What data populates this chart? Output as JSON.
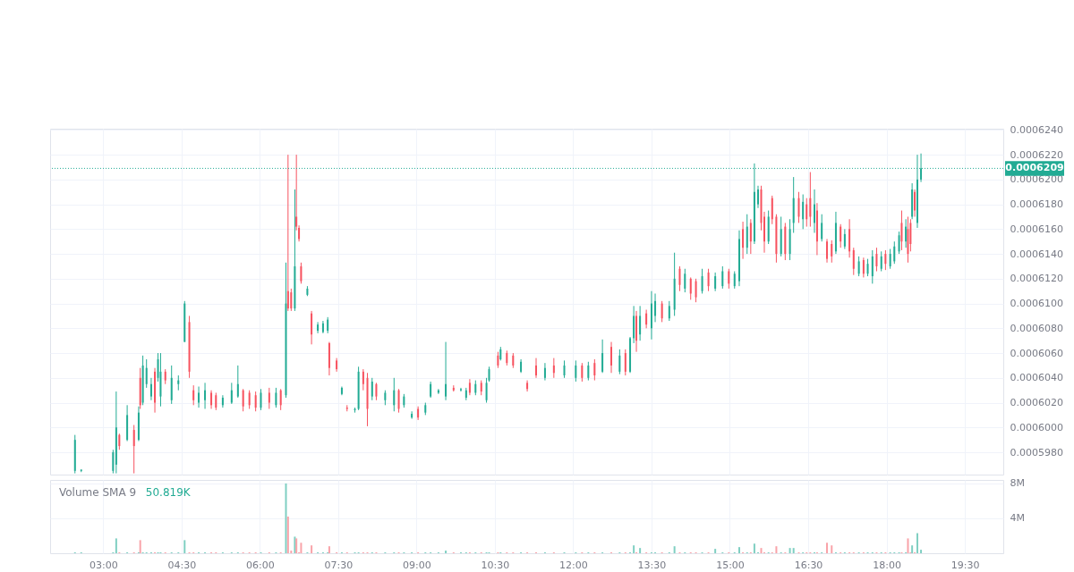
{
  "chart_data": [
    {
      "type": "candlestick",
      "x": [
        2.46,
        2.58,
        3.19,
        3.25,
        3.31,
        3.46,
        3.59,
        3.68,
        3.71,
        3.76,
        3.83,
        3.92,
        3.99,
        4.05,
        4.1,
        4.19,
        4.31,
        4.44,
        4.56,
        4.65,
        4.73,
        4.83,
        4.95,
        5.07,
        5.16,
        5.29,
        5.46,
        5.58,
        5.68,
        5.8,
        5.92,
        6.02,
        6.18,
        6.31,
        6.4,
        6.5,
        6.54,
        6.6,
        6.67,
        6.7,
        6.75,
        6.79,
        6.91,
        6.99,
        7.11,
        7.21,
        7.3,
        7.33,
        7.47,
        7.57,
        7.67,
        7.82,
        7.89,
        7.98,
        8.06,
        8.15,
        8.23,
        8.4,
        8.57,
        8.66,
        8.76,
        8.91,
        9.03,
        9.17,
        9.27,
        9.42,
        9.56,
        9.71,
        9.85,
        9.95,
        10.02,
        10.13,
        10.24,
        10.34,
        10.39,
        10.56,
        10.61,
        10.73,
        10.85,
        11.0,
        11.12,
        11.29,
        11.46,
        11.63,
        11.83,
        12.05,
        12.17,
        12.29,
        12.41,
        12.56,
        12.73,
        12.89,
        13.0,
        13.09,
        13.16,
        13.21,
        13.28,
        13.4,
        13.5,
        13.57,
        13.7,
        13.84,
        13.94,
        14.04,
        14.14,
        14.25,
        14.35,
        14.47,
        14.59,
        14.72,
        14.86,
        14.98,
        15.09,
        15.18,
        15.25,
        15.33,
        15.4,
        15.47,
        15.54,
        15.6,
        15.66,
        15.74,
        15.81,
        15.89,
        15.98,
        16.06,
        16.15,
        16.22,
        16.32,
        16.4,
        16.47,
        16.54,
        16.62,
        16.67,
        16.76,
        16.86,
        16.95,
        17.03,
        17.12,
        17.2,
        17.29,
        17.37,
        17.47,
        17.56,
        17.64,
        17.73,
        17.81,
        17.9,
        17.98,
        18.07,
        18.15,
        18.24,
        18.29,
        18.37,
        18.41,
        18.46,
        18.49,
        18.54,
        18.59,
        18.66
      ],
      "ohlc": [
        [
          0.0005965,
          0.0005994,
          0.0005963,
          0.000599
        ],
        [
          0.0005965,
          0.0005966,
          0.0005964,
          0.0005966
        ],
        [
          0.0005965,
          0.0005982,
          0.0005963,
          0.000598
        ],
        [
          0.000597,
          0.0006029,
          0.0005963,
          0.0006
        ],
        [
          0.0005994,
          0.0005995,
          0.0005982,
          0.0005985
        ],
        [
          0.000599,
          0.0006018,
          0.0005989,
          0.000601
        ],
        [
          0.0005998,
          0.0006002,
          0.0005963,
          0.0005985
        ],
        [
          0.000599,
          0.0006017,
          0.0005989,
          0.0006012
        ],
        [
          0.000604,
          0.0006048,
          0.0006015,
          0.0006018
        ],
        [
          0.000602,
          0.0006058,
          0.0006018,
          0.000605
        ],
        [
          0.0006035,
          0.0006055,
          0.0006032,
          0.0006048
        ],
        [
          0.0006025,
          0.000604,
          0.0006022,
          0.0006035
        ],
        [
          0.0006045,
          0.0006048,
          0.0006012,
          0.000602
        ],
        [
          0.000604,
          0.000606,
          0.0006037,
          0.0006055
        ],
        [
          0.0006025,
          0.000606,
          0.0006017,
          0.0006045
        ],
        [
          0.0006045,
          0.0006047,
          0.0006035,
          0.0006038
        ],
        [
          0.0006022,
          0.000605,
          0.0006019,
          0.000604
        ],
        [
          0.0006035,
          0.0006042,
          0.000603,
          0.0006038
        ],
        [
          0.0006069,
          0.0006102,
          0.0006069,
          0.00061
        ],
        [
          0.0006085,
          0.000609,
          0.000604,
          0.0006045
        ],
        [
          0.000603,
          0.0006034,
          0.0006018,
          0.0006022
        ],
        [
          0.000602,
          0.0006033,
          0.0006016,
          0.0006028
        ],
        [
          0.0006022,
          0.0006036,
          0.0006015,
          0.000603
        ],
        [
          0.0006028,
          0.000603,
          0.0006015,
          0.0006018
        ],
        [
          0.0006026,
          0.0006028,
          0.0006014,
          0.0006016
        ],
        [
          0.0006018,
          0.0006026,
          0.0006016,
          0.0006024
        ],
        [
          0.000602,
          0.0006036,
          0.0006019,
          0.000603
        ],
        [
          0.0006025,
          0.000605,
          0.0006024,
          0.0006035
        ],
        [
          0.000603,
          0.0006031,
          0.0006013,
          0.0006017
        ],
        [
          0.0006028,
          0.000603,
          0.0006015,
          0.0006018
        ],
        [
          0.0006026,
          0.0006029,
          0.0006013,
          0.0006016
        ],
        [
          0.0006016,
          0.0006031,
          0.0006014,
          0.0006028
        ],
        [
          0.0006028,
          0.0006032,
          0.0006015,
          0.000602
        ],
        [
          0.0006018,
          0.0006032,
          0.0006016,
          0.0006028
        ],
        [
          0.000603,
          0.0006031,
          0.0006014,
          0.0006018
        ],
        [
          0.0006026,
          0.0006133,
          0.0006024,
          0.00061
        ],
        [
          0.000611,
          0.000622,
          0.0006094,
          0.0006096
        ],
        [
          0.0006109,
          0.0006112,
          0.0006094,
          0.0006096
        ],
        [
          0.0006096,
          0.0006192,
          0.0006094,
          0.000613
        ],
        [
          0.000617,
          0.000622,
          0.0006159,
          0.0006162
        ],
        [
          0.0006161,
          0.0006163,
          0.000615,
          0.0006152
        ],
        [
          0.000613,
          0.0006133,
          0.0006116,
          0.0006118
        ],
        [
          0.0006107,
          0.0006114,
          0.0006106,
          0.0006112
        ],
        [
          0.0006092,
          0.0006094,
          0.0006067,
          0.0006075
        ],
        [
          0.0006078,
          0.0006085,
          0.0006076,
          0.0006083
        ],
        [
          0.0006077,
          0.0006086,
          0.0006076,
          0.0006084
        ],
        [
          0.0006078,
          0.0006089,
          0.0006076,
          0.0006087
        ],
        [
          0.0006068,
          0.0006069,
          0.0006042,
          0.0006048
        ],
        [
          0.0006054,
          0.0006056,
          0.0006045,
          0.0006047
        ],
        [
          0.0006027,
          0.0006033,
          0.0006026,
          0.0006032
        ],
        [
          0.0006016,
          0.0006018,
          0.0006013,
          0.0006015
        ],
        [
          0.0006014,
          0.0006016,
          0.0006012,
          0.0006015
        ],
        [
          0.0006015,
          0.0006049,
          0.0006014,
          0.0006045
        ],
        [
          0.0006045,
          0.0006047,
          0.000603,
          0.0006035
        ],
        [
          0.000604,
          0.0006044,
          0.0006001,
          0.0006015
        ],
        [
          0.0006025,
          0.000604,
          0.0006022,
          0.0006037
        ],
        [
          0.0006035,
          0.0006036,
          0.0006022,
          0.0006025
        ],
        [
          0.0006022,
          0.000603,
          0.0006018,
          0.0006028
        ],
        [
          0.0006018,
          0.000604,
          0.0006013,
          0.000603
        ],
        [
          0.000603,
          0.0006031,
          0.0006012,
          0.0006015
        ],
        [
          0.0006018,
          0.0006027,
          0.0006016,
          0.0006025
        ],
        [
          0.0006008,
          0.0006013,
          0.0006007,
          0.0006011
        ],
        [
          0.0006015,
          0.0006017,
          0.0006006,
          0.0006008
        ],
        [
          0.0006012,
          0.000602,
          0.000601,
          0.0006018
        ],
        [
          0.0006025,
          0.0006037,
          0.0006024,
          0.0006035
        ],
        [
          0.0006028,
          0.0006031,
          0.0006027,
          0.000603
        ],
        [
          0.0006025,
          0.0006069,
          0.0006022,
          0.0006035
        ],
        [
          0.0006032,
          0.0006034,
          0.0006029,
          0.000603
        ],
        [
          0.000603,
          0.0006032,
          0.0006029,
          0.0006031
        ],
        [
          0.0006024,
          0.0006032,
          0.0006022,
          0.000603
        ],
        [
          0.0006036,
          0.0006039,
          0.0006026,
          0.0006028
        ],
        [
          0.0006028,
          0.0006038,
          0.0006026,
          0.0006035
        ],
        [
          0.0006036,
          0.0006038,
          0.0006026,
          0.0006029
        ],
        [
          0.0006022,
          0.000604,
          0.000602,
          0.0006036
        ],
        [
          0.0006038,
          0.0006049,
          0.0006037,
          0.0006047
        ],
        [
          0.0006058,
          0.0006061,
          0.0006048,
          0.000605
        ],
        [
          0.0006055,
          0.0006065,
          0.0006054,
          0.0006063
        ],
        [
          0.000606,
          0.0006062,
          0.000605,
          0.0006052
        ],
        [
          0.0006058,
          0.000606,
          0.0006048,
          0.000605
        ],
        [
          0.0006045,
          0.0006055,
          0.0006044,
          0.0006053
        ],
        [
          0.0006036,
          0.0006038,
          0.0006029,
          0.0006031
        ],
        [
          0.000605,
          0.0006056,
          0.000604,
          0.0006042
        ],
        [
          0.000604,
          0.0006052,
          0.0006038,
          0.0006048
        ],
        [
          0.000605,
          0.0006056,
          0.000604,
          0.0006044
        ],
        [
          0.0006042,
          0.0006054,
          0.000604,
          0.000605
        ],
        [
          0.000604,
          0.0006054,
          0.0006037,
          0.000605
        ],
        [
          0.000605,
          0.0006052,
          0.0006037,
          0.000604
        ],
        [
          0.000604,
          0.0006053,
          0.0006038,
          0.000605
        ],
        [
          0.0006052,
          0.0006055,
          0.0006038,
          0.0006042
        ],
        [
          0.0006045,
          0.0006071,
          0.0006044,
          0.000606
        ],
        [
          0.0006065,
          0.0006069,
          0.0006044,
          0.000605
        ],
        [
          0.0006045,
          0.0006063,
          0.0006043,
          0.0006058
        ],
        [
          0.000606,
          0.0006063,
          0.0006042,
          0.0006045
        ],
        [
          0.0006045,
          0.0006073,
          0.0006044,
          0.0006072
        ],
        [
          0.0006072,
          0.0006098,
          0.0006068,
          0.000609
        ],
        [
          0.000609,
          0.0006094,
          0.0006061,
          0.000607
        ],
        [
          0.0006075,
          0.0006098,
          0.000607,
          0.000609
        ],
        [
          0.0006092,
          0.0006095,
          0.000608,
          0.0006083
        ],
        [
          0.000608,
          0.000611,
          0.0006071,
          0.00061
        ],
        [
          0.000609,
          0.0006108,
          0.0006085,
          0.0006102
        ],
        [
          0.00061,
          0.0006102,
          0.0006085,
          0.0006088
        ],
        [
          0.0006088,
          0.0006102,
          0.0006086,
          0.0006098
        ],
        [
          0.0006095,
          0.0006141,
          0.000609,
          0.000612
        ],
        [
          0.0006128,
          0.000613,
          0.000611,
          0.0006115
        ],
        [
          0.0006112,
          0.0006128,
          0.0006109,
          0.0006124
        ],
        [
          0.000612,
          0.0006121,
          0.0006103,
          0.0006108
        ],
        [
          0.0006118,
          0.000612,
          0.0006101,
          0.0006105
        ],
        [
          0.000611,
          0.0006128,
          0.0006108,
          0.0006122
        ],
        [
          0.0006125,
          0.0006128,
          0.000611,
          0.0006114
        ],
        [
          0.0006112,
          0.0006125,
          0.000611,
          0.0006122
        ],
        [
          0.0006114,
          0.000613,
          0.0006112,
          0.0006126
        ],
        [
          0.0006126,
          0.0006128,
          0.0006112,
          0.0006116
        ],
        [
          0.0006114,
          0.0006126,
          0.0006112,
          0.0006124
        ],
        [
          0.0006118,
          0.0006159,
          0.0006114,
          0.0006152
        ],
        [
          0.000616,
          0.0006166,
          0.0006136,
          0.0006145
        ],
        [
          0.0006145,
          0.0006172,
          0.000614,
          0.0006162
        ],
        [
          0.0006165,
          0.0006168,
          0.000614,
          0.000615
        ],
        [
          0.000615,
          0.0006213,
          0.0006148,
          0.000619
        ],
        [
          0.000618,
          0.0006195,
          0.0006177,
          0.0006192
        ],
        [
          0.0006192,
          0.0006195,
          0.0006159,
          0.0006165
        ],
        [
          0.000617,
          0.0006174,
          0.0006141,
          0.000615
        ],
        [
          0.000615,
          0.0006175,
          0.0006148,
          0.000617
        ],
        [
          0.0006185,
          0.0006187,
          0.0006164,
          0.0006168
        ],
        [
          0.000617,
          0.0006172,
          0.0006133,
          0.000614
        ],
        [
          0.000614,
          0.000617,
          0.0006138,
          0.000616
        ],
        [
          0.0006162,
          0.0006165,
          0.0006135,
          0.000614
        ],
        [
          0.000614,
          0.0006168,
          0.0006135,
          0.000616
        ],
        [
          0.0006165,
          0.0006202,
          0.0006157,
          0.0006185
        ],
        [
          0.0006185,
          0.000619,
          0.0006165,
          0.000617
        ],
        [
          0.0006168,
          0.0006188,
          0.000616,
          0.0006182
        ],
        [
          0.000618,
          0.0006185,
          0.0006162,
          0.0006168
        ],
        [
          0.0006185,
          0.0006206,
          0.0006162,
          0.000617
        ],
        [
          0.0006165,
          0.0006192,
          0.0006157,
          0.000618
        ],
        [
          0.0006175,
          0.0006181,
          0.0006139,
          0.000615
        ],
        [
          0.0006152,
          0.0006172,
          0.000615,
          0.0006165
        ],
        [
          0.000615,
          0.0006152,
          0.0006133,
          0.0006136
        ],
        [
          0.0006148,
          0.0006151,
          0.0006133,
          0.0006138
        ],
        [
          0.0006142,
          0.0006174,
          0.000614,
          0.0006165
        ],
        [
          0.0006162,
          0.0006164,
          0.0006145,
          0.000615
        ],
        [
          0.0006146,
          0.000616,
          0.0006144,
          0.0006156
        ],
        [
          0.000616,
          0.0006168,
          0.0006137,
          0.0006142
        ],
        [
          0.0006143,
          0.0006145,
          0.0006123,
          0.0006128
        ],
        [
          0.0006124,
          0.0006138,
          0.0006122,
          0.0006134
        ],
        [
          0.0006135,
          0.0006137,
          0.0006121,
          0.0006124
        ],
        [
          0.0006124,
          0.0006136,
          0.0006122,
          0.0006132
        ],
        [
          0.0006122,
          0.0006143,
          0.0006116,
          0.0006138
        ],
        [
          0.000614,
          0.0006145,
          0.0006126,
          0.000613
        ],
        [
          0.0006128,
          0.0006142,
          0.0006126,
          0.0006138
        ],
        [
          0.000614,
          0.0006143,
          0.0006127,
          0.0006132
        ],
        [
          0.000613,
          0.0006144,
          0.0006128,
          0.000614
        ],
        [
          0.0006134,
          0.000615,
          0.0006132,
          0.0006146
        ],
        [
          0.0006142,
          0.0006158,
          0.000614,
          0.0006155
        ],
        [
          0.0006165,
          0.0006175,
          0.0006143,
          0.000615
        ],
        [
          0.000615,
          0.0006168,
          0.0006145,
          0.0006162
        ],
        [
          0.000616,
          0.000617,
          0.0006133,
          0.000614
        ],
        [
          0.0006165,
          0.0006168,
          0.0006142,
          0.0006148
        ],
        [
          0.000617,
          0.0006197,
          0.0006168,
          0.0006192
        ],
        [
          0.000619,
          0.0006192,
          0.000617,
          0.0006175
        ],
        [
          0.0006165,
          0.000622,
          0.0006161,
          0.00062
        ],
        [
          0.00062,
          0.0006221,
          0.0006198,
          0.0006209
        ]
      ],
      "colors": [
        "#22ab94",
        "#22ab94",
        "#22ab94",
        "#22ab94",
        "#f7525f",
        "#22ab94",
        "#f7525f",
        "#22ab94",
        "#f7525f",
        "#22ab94",
        "#22ab94",
        "#22ab94",
        "#f7525f",
        "#22ab94",
        "#22ab94",
        "#f7525f",
        "#22ab94",
        "#22ab94",
        "#22ab94",
        "#f7525f",
        "#f7525f",
        "#22ab94",
        "#22ab94",
        "#f7525f",
        "#f7525f",
        "#22ab94",
        "#22ab94",
        "#22ab94",
        "#f7525f",
        "#f7525f",
        "#f7525f",
        "#22ab94",
        "#f7525f",
        "#22ab94",
        "#f7525f",
        "#22ab94",
        "#f7525f",
        "#f7525f",
        "#22ab94",
        "#f7525f",
        "#f7525f",
        "#f7525f",
        "#22ab94",
        "#f7525f",
        "#22ab94",
        "#22ab94",
        "#22ab94",
        "#f7525f",
        "#f7525f",
        "#22ab94",
        "#f7525f",
        "#22ab94",
        "#22ab94",
        "#f7525f",
        "#f7525f",
        "#22ab94",
        "#f7525f",
        "#22ab94",
        "#22ab94",
        "#f7525f",
        "#22ab94",
        "#22ab94",
        "#f7525f",
        "#22ab94",
        "#22ab94",
        "#22ab94",
        "#22ab94",
        "#f7525f",
        "#22ab94",
        "#22ab94",
        "#f7525f",
        "#22ab94",
        "#f7525f",
        "#22ab94",
        "#22ab94",
        "#f7525f",
        "#22ab94",
        "#f7525f",
        "#f7525f",
        "#22ab94",
        "#f7525f",
        "#f7525f",
        "#22ab94",
        "#f7525f",
        "#22ab94",
        "#22ab94",
        "#f7525f",
        "#22ab94",
        "#f7525f",
        "#22ab94",
        "#f7525f",
        "#22ab94",
        "#f7525f",
        "#22ab94",
        "#22ab94",
        "#f7525f",
        "#22ab94",
        "#f7525f",
        "#22ab94",
        "#22ab94",
        "#f7525f",
        "#22ab94",
        "#22ab94",
        "#f7525f",
        "#22ab94",
        "#f7525f",
        "#f7525f",
        "#22ab94",
        "#f7525f",
        "#22ab94",
        "#22ab94",
        "#f7525f",
        "#22ab94",
        "#22ab94",
        "#f7525f",
        "#22ab94",
        "#f7525f",
        "#22ab94",
        "#22ab94",
        "#f7525f",
        "#f7525f",
        "#22ab94",
        "#f7525f",
        "#f7525f",
        "#22ab94",
        "#f7525f",
        "#22ab94",
        "#22ab94",
        "#f7525f",
        "#22ab94",
        "#f7525f",
        "#f7525f",
        "#22ab94",
        "#f7525f",
        "#22ab94",
        "#f7525f",
        "#f7525f",
        "#22ab94",
        "#f7525f",
        "#22ab94",
        "#f7525f",
        "#f7525f",
        "#22ab94",
        "#f7525f",
        "#22ab94",
        "#22ab94",
        "#f7525f",
        "#22ab94",
        "#f7525f",
        "#22ab94",
        "#22ab94",
        "#22ab94",
        "#f7525f",
        "#22ab94",
        "#f7525f",
        "#f7525f",
        "#22ab94",
        "#f7525f",
        "#22ab94",
        "#22ab94"
      ],
      "xlim": [
        2.07,
        20.15
      ],
      "xticks": [
        3,
        4.5,
        6,
        7.5,
        9,
        10.5,
        12,
        13.5,
        15,
        16.5,
        18,
        19.5
      ],
      "ylim": [
        0.0005962,
        0.0006241
      ],
      "yticks": [
        {
          "value": 0.000598,
          "label": "0.0005980"
        },
        {
          "value": 0.0006,
          "label": "0.0006000"
        },
        {
          "value": 0.000602,
          "label": "0.0006020"
        },
        {
          "value": 0.000604,
          "label": "0.0006040"
        },
        {
          "value": 0.000606,
          "label": "0.0006060"
        },
        {
          "value": 0.000608,
          "label": "0.0006080"
        },
        {
          "value": 0.00061,
          "label": "0.0006100"
        },
        {
          "value": 0.000612,
          "label": "0.0006120"
        },
        {
          "value": 0.000614,
          "label": "0.0006140"
        },
        {
          "value": 0.000616,
          "label": "0.0006160"
        },
        {
          "value": 0.000618,
          "label": "0.0006180"
        },
        {
          "value": 0.00062,
          "label": "0.0006200"
        },
        {
          "value": 0.000622,
          "label": "0.0006220"
        },
        {
          "value": 0.000624,
          "label": "0.0006240"
        }
      ],
      "grid": true,
      "tick_labels": "y",
      "ref_lines": [
        {
          "axis": "y",
          "value": 0.0006209,
          "label": "0.0006209",
          "color": "#22ab94",
          "line_style": "dotted"
        }
      ]
    },
    {
      "type": "bar",
      "x": [
        2.46,
        2.58,
        3.19,
        3.25,
        3.31,
        3.46,
        3.59,
        3.68,
        3.71,
        3.76,
        3.83,
        3.92,
        3.99,
        4.05,
        4.1,
        4.19,
        4.31,
        4.44,
        4.56,
        4.65,
        4.73,
        4.83,
        4.95,
        5.07,
        5.16,
        5.29,
        5.46,
        5.58,
        5.68,
        5.8,
        5.92,
        6.02,
        6.18,
        6.31,
        6.4,
        6.5,
        6.54,
        6.6,
        6.67,
        6.7,
        6.75,
        6.79,
        6.91,
        6.99,
        7.11,
        7.21,
        7.3,
        7.33,
        7.47,
        7.57,
        7.67,
        7.82,
        7.89,
        7.98,
        8.06,
        8.15,
        8.23,
        8.4,
        8.57,
        8.66,
        8.76,
        8.91,
        9.03,
        9.17,
        9.27,
        9.42,
        9.56,
        9.71,
        9.85,
        9.95,
        10.02,
        10.13,
        10.24,
        10.34,
        10.39,
        10.56,
        10.61,
        10.73,
        10.85,
        11.0,
        11.12,
        11.29,
        11.46,
        11.63,
        11.83,
        12.05,
        12.17,
        12.29,
        12.41,
        12.56,
        12.73,
        12.89,
        13.0,
        13.09,
        13.16,
        13.21,
        13.28,
        13.4,
        13.5,
        13.57,
        13.7,
        13.84,
        13.94,
        14.04,
        14.14,
        14.25,
        14.35,
        14.47,
        14.59,
        14.72,
        14.86,
        14.98,
        15.09,
        15.18,
        15.25,
        15.33,
        15.4,
        15.47,
        15.54,
        15.6,
        15.66,
        15.74,
        15.81,
        15.89,
        15.98,
        16.06,
        16.15,
        16.22,
        16.32,
        16.4,
        16.47,
        16.54,
        16.62,
        16.67,
        16.76,
        16.86,
        16.95,
        17.03,
        17.12,
        17.2,
        17.29,
        17.37,
        17.47,
        17.56,
        17.64,
        17.73,
        17.81,
        17.9,
        17.98,
        18.07,
        18.15,
        18.24,
        18.29,
        18.37,
        18.41,
        18.46,
        18.49,
        18.54,
        18.59,
        18.66
      ],
      "values": [
        100000,
        100000,
        100000,
        1700000,
        100000,
        100000,
        100000,
        100000,
        1500000,
        100000,
        100000,
        100000,
        100000,
        100000,
        100000,
        100000,
        100000,
        100000,
        1500000,
        100000,
        100000,
        100000,
        100000,
        100000,
        100000,
        100000,
        100000,
        100000,
        100000,
        100000,
        100000,
        100000,
        100000,
        100000,
        100000,
        8000000,
        4200000,
        300000,
        1900000,
        1700000,
        100000,
        1200000,
        100000,
        900000,
        100000,
        100000,
        100000,
        800000,
        100000,
        100000,
        100000,
        100000,
        100000,
        100000,
        100000,
        100000,
        100000,
        100000,
        100000,
        100000,
        100000,
        100000,
        100000,
        100000,
        100000,
        100000,
        300000,
        100000,
        100000,
        100000,
        100000,
        100000,
        100000,
        100000,
        100000,
        100000,
        100000,
        100000,
        100000,
        100000,
        100000,
        100000,
        100000,
        100000,
        100000,
        100000,
        100000,
        100000,
        100000,
        100000,
        100000,
        100000,
        100000,
        100000,
        900000,
        100000,
        600000,
        100000,
        100000,
        100000,
        100000,
        100000,
        800000,
        100000,
        100000,
        100000,
        100000,
        100000,
        100000,
        500000,
        100000,
        100000,
        100000,
        700000,
        100000,
        100000,
        100000,
        1100000,
        100000,
        600000,
        100000,
        100000,
        100000,
        800000,
        100000,
        100000,
        600000,
        600000,
        100000,
        100000,
        100000,
        100000,
        100000,
        100000,
        100000,
        1200000,
        900000,
        100000,
        100000,
        100000,
        100000,
        100000,
        100000,
        100000,
        100000,
        100000,
        100000,
        100000,
        100000,
        100000,
        100000,
        100000,
        100000,
        100000,
        1700000,
        100000,
        900000,
        100000,
        2300000,
        400000
      ],
      "colors": [
        "#7fcfc2",
        "#7fcfc2",
        "#7fcfc2",
        "#7fcfc2",
        "#f9a3a9",
        "#7fcfc2",
        "#f9a3a9",
        "#7fcfc2",
        "#f9a3a9",
        "#7fcfc2",
        "#7fcfc2",
        "#7fcfc2",
        "#f9a3a9",
        "#7fcfc2",
        "#7fcfc2",
        "#f9a3a9",
        "#7fcfc2",
        "#7fcfc2",
        "#7fcfc2",
        "#f9a3a9",
        "#f9a3a9",
        "#7fcfc2",
        "#7fcfc2",
        "#f9a3a9",
        "#f9a3a9",
        "#7fcfc2",
        "#7fcfc2",
        "#7fcfc2",
        "#f9a3a9",
        "#f9a3a9",
        "#f9a3a9",
        "#7fcfc2",
        "#f9a3a9",
        "#7fcfc2",
        "#f9a3a9",
        "#7fcfc2",
        "#f9a3a9",
        "#f9a3a9",
        "#7fcfc2",
        "#f9a3a9",
        "#f9a3a9",
        "#f9a3a9",
        "#7fcfc2",
        "#f9a3a9",
        "#7fcfc2",
        "#7fcfc2",
        "#7fcfc2",
        "#f9a3a9",
        "#f9a3a9",
        "#7fcfc2",
        "#f9a3a9",
        "#7fcfc2",
        "#7fcfc2",
        "#f9a3a9",
        "#f9a3a9",
        "#7fcfc2",
        "#f9a3a9",
        "#7fcfc2",
        "#7fcfc2",
        "#f9a3a9",
        "#7fcfc2",
        "#7fcfc2",
        "#f9a3a9",
        "#7fcfc2",
        "#7fcfc2",
        "#7fcfc2",
        "#7fcfc2",
        "#f9a3a9",
        "#7fcfc2",
        "#7fcfc2",
        "#f9a3a9",
        "#7fcfc2",
        "#f9a3a9",
        "#7fcfc2",
        "#7fcfc2",
        "#f9a3a9",
        "#7fcfc2",
        "#f9a3a9",
        "#f9a3a9",
        "#7fcfc2",
        "#f9a3a9",
        "#f9a3a9",
        "#7fcfc2",
        "#f9a3a9",
        "#7fcfc2",
        "#7fcfc2",
        "#f9a3a9",
        "#7fcfc2",
        "#f9a3a9",
        "#7fcfc2",
        "#f9a3a9",
        "#7fcfc2",
        "#f9a3a9",
        "#7fcfc2",
        "#7fcfc2",
        "#f9a3a9",
        "#7fcfc2",
        "#f9a3a9",
        "#7fcfc2",
        "#7fcfc2",
        "#f9a3a9",
        "#7fcfc2",
        "#7fcfc2",
        "#f9a3a9",
        "#7fcfc2",
        "#f9a3a9",
        "#f9a3a9",
        "#7fcfc2",
        "#f9a3a9",
        "#7fcfc2",
        "#7fcfc2",
        "#f9a3a9",
        "#7fcfc2",
        "#7fcfc2",
        "#f9a3a9",
        "#7fcfc2",
        "#f9a3a9",
        "#7fcfc2",
        "#7fcfc2",
        "#f9a3a9",
        "#f9a3a9",
        "#7fcfc2",
        "#f9a3a9",
        "#f9a3a9",
        "#7fcfc2",
        "#f9a3a9",
        "#7fcfc2",
        "#7fcfc2",
        "#f9a3a9",
        "#7fcfc2",
        "#f9a3a9",
        "#f9a3a9",
        "#7fcfc2",
        "#f9a3a9",
        "#7fcfc2",
        "#f9a3a9",
        "#f9a3a9",
        "#7fcfc2",
        "#f9a3a9",
        "#7fcfc2",
        "#f9a3a9",
        "#f9a3a9",
        "#7fcfc2",
        "#f9a3a9",
        "#7fcfc2",
        "#7fcfc2",
        "#f9a3a9",
        "#7fcfc2",
        "#f9a3a9",
        "#7fcfc2",
        "#7fcfc2",
        "#7fcfc2",
        "#f9a3a9",
        "#7fcfc2",
        "#f9a3a9",
        "#f9a3a9",
        "#7fcfc2",
        "#f9a3a9",
        "#7fcfc2",
        "#7fcfc2"
      ],
      "xlim": [
        2.07,
        20.15
      ],
      "xticks": [
        {
          "value": 3,
          "label": "03:00"
        },
        {
          "value": 4.5,
          "label": "04:30"
        },
        {
          "value": 6,
          "label": "06:00"
        },
        {
          "value": 7.5,
          "label": "07:30"
        },
        {
          "value": 9,
          "label": "09:00"
        },
        {
          "value": 10.5,
          "label": "10:30"
        },
        {
          "value": 12,
          "label": "12:00"
        },
        {
          "value": 13.5,
          "label": "13:30"
        },
        {
          "value": 15,
          "label": "15:00"
        },
        {
          "value": 16.5,
          "label": "16:30"
        },
        {
          "value": 18,
          "label": "18:00"
        },
        {
          "value": 19.5,
          "label": "19:30"
        }
      ],
      "ylim": [
        0,
        8400000
      ],
      "yticks": [
        {
          "value": 4000000,
          "label": "4M"
        },
        {
          "value": 8000000,
          "label": "8M"
        }
      ],
      "grid": true,
      "annotations": [
        "Volume SMA 9",
        "50.819K"
      ]
    }
  ]
}
